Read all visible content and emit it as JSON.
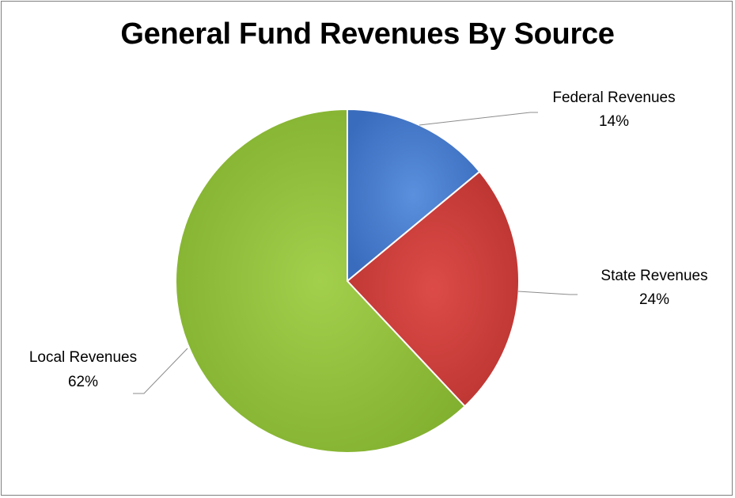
{
  "chart_data": {
    "type": "pie",
    "title": "General Fund Revenues By Source",
    "slices": [
      {
        "name": "Federal Revenues",
        "value": 14,
        "label": "14%",
        "color": "#4a7fce"
      },
      {
        "name": "State Revenues",
        "value": 24,
        "label": "24%",
        "color": "#d0403d"
      },
      {
        "name": "Local Revenues",
        "value": 62,
        "label": "62%",
        "color": "#92c13d"
      }
    ],
    "unit": "%",
    "legend": "none",
    "data_labels": "outside-with-leader-lines"
  }
}
